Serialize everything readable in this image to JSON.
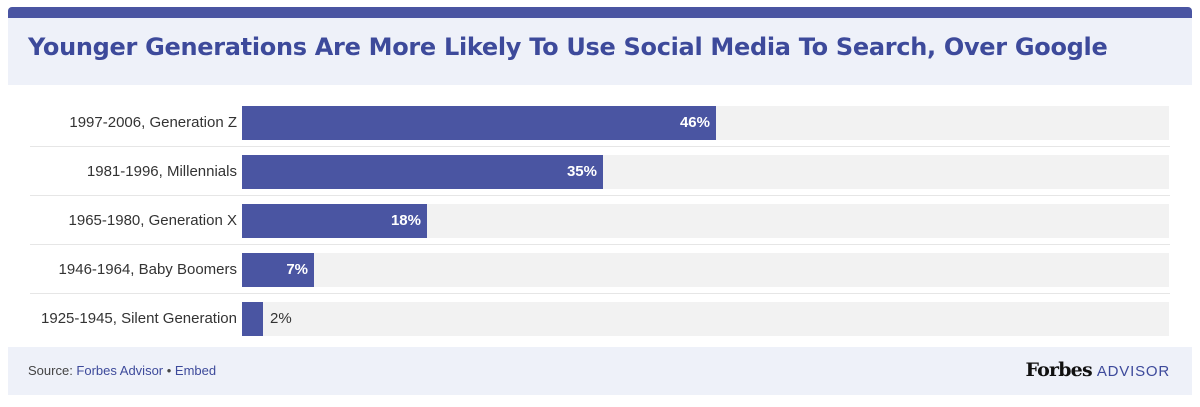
{
  "colors": {
    "accent": "#4a55a2",
    "header_bg": "#eef1f9",
    "track_bg": "#f2f2f2"
  },
  "chart_data": {
    "type": "bar",
    "orientation": "horizontal",
    "title": "Younger Generations Are More Likely To Use Social Media To Search, Over Google",
    "categories": [
      "1997-2006, Generation Z",
      "1981-1996, Millennials",
      "1965-1980, Generation X",
      "1946-1964, Baby Boomers",
      "1925-1945, Silent Generation"
    ],
    "values": [
      46,
      35,
      18,
      7,
      2
    ],
    "value_labels": [
      "46%",
      "35%",
      "18%",
      "7%",
      "2%"
    ],
    "xlim": [
      0,
      90
    ],
    "xlabel": "",
    "ylabel": "",
    "grid": false,
    "legend": "none"
  },
  "footer": {
    "source_label": "Source: ",
    "source_name": "Forbes Advisor",
    "separator": " • ",
    "embed_label": "Embed",
    "brand_name": "Forbes",
    "brand_suffix": "ADVISOR"
  }
}
